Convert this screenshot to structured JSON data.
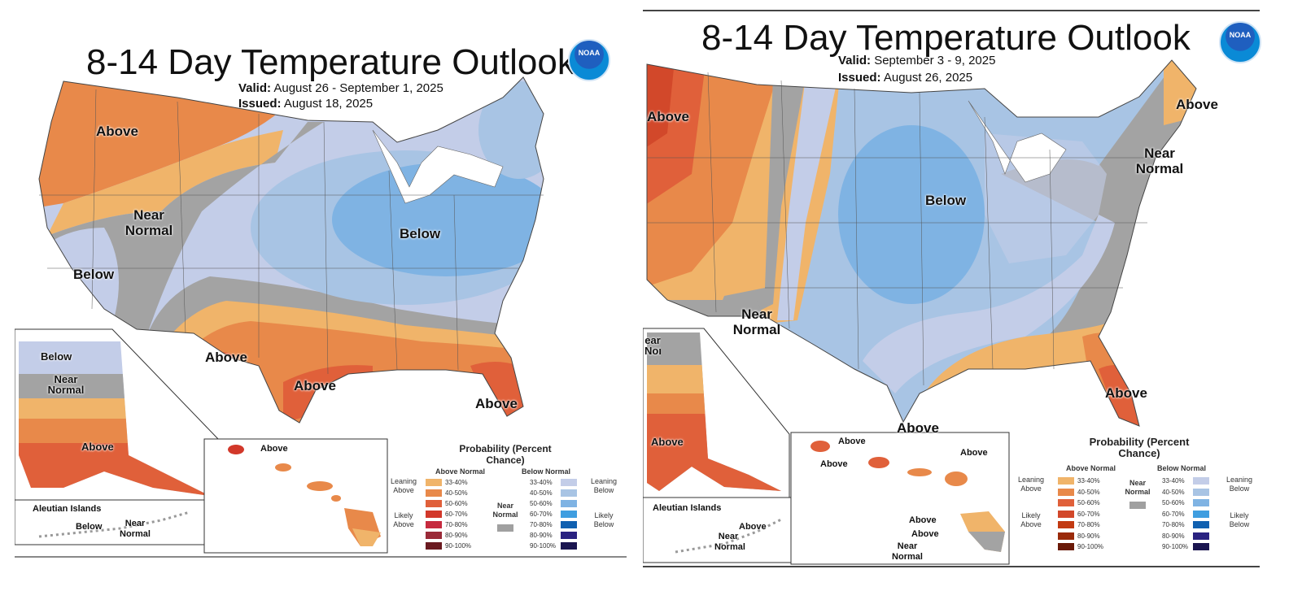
{
  "left_map": {
    "title": "8-14 Day Temperature Outlook",
    "valid_label": "Valid:",
    "valid": "August 26 - September 1, 2025",
    "issued_label": "Issued:",
    "issued": "August 18, 2025",
    "logo_text": "NOAA",
    "region_labels": [
      "Above",
      "Near Normal",
      "Below",
      "Below",
      "Above",
      "Above",
      "Above",
      "Below",
      "Near Normal",
      "Above",
      "Above",
      "Below",
      "Near Normal"
    ],
    "aleutian_title": "Aleutian Islands"
  },
  "right_map": {
    "title": "8-14 Day Temperature Outlook",
    "valid_label": "Valid:",
    "valid": "September 3 - 9, 2025",
    "issued_label": "Issued:",
    "issued": "August 26, 2025",
    "logo_text": "NOAA",
    "region_labels": [
      "Above",
      "Above",
      "Near Normal",
      "Below",
      "Near Normal",
      "Above",
      "Above",
      "ear Normal",
      "Above",
      "Above",
      "Above",
      "Above",
      "Above",
      "Above",
      "Near Normal",
      "Above",
      "Near Normal"
    ],
    "aleutian_title": "Aleutian Islands"
  },
  "legend": {
    "title": "Probability (Percent Chance)",
    "above_header": "Above Normal",
    "below_header": "Below Normal",
    "near_normal": "Near Normal",
    "leaning_above": "Leaning Above",
    "likely_above": "Likely Above",
    "leaning_below": "Leaning Below",
    "likely_below": "Likely Below",
    "ranges": [
      "33-40%",
      "40-50%",
      "50-60%",
      "60-70%",
      "70-80%",
      "80-90%",
      "90-100%"
    ],
    "above_colors": [
      "#f0b46a",
      "#e8894a",
      "#e0603a",
      "#d2382a",
      "#c62a3e",
      "#9a2a38",
      "#6a1a20"
    ],
    "above_colors_right": [
      "#f0b46a",
      "#e8894a",
      "#e0603a",
      "#d2482a",
      "#c23a12",
      "#9a2a0a",
      "#6a1a08"
    ],
    "below_colors": [
      "#c3cde8",
      "#a8c4e4",
      "#7fb3e3",
      "#3f9ee0",
      "#1060b0",
      "#2a2280",
      "#1a1550"
    ],
    "near_color": "#a0a0a0"
  },
  "colors": {
    "orange1": "#f0b46a",
    "orange2": "#e8894a",
    "red": "#e0603a",
    "red2": "#d2382a",
    "gray": "#a3a3a3",
    "blue1": "#c3cde8",
    "blue2": "#a8c4e4",
    "blue3": "#7fb3e3"
  }
}
